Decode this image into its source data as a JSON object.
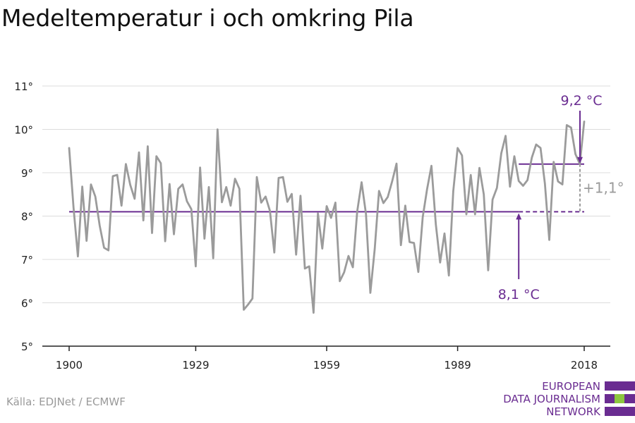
{
  "title": "Medeltemperatur i och omkring Pila",
  "source": "Källa: EDJNet / ECMWF",
  "logo": {
    "line1": "EUROPEAN",
    "line2": "DATA JOURNALISM",
    "line3": "NETWORK",
    "colors": {
      "purple": "#6a2c91",
      "green": "#8dc63f"
    }
  },
  "colors": {
    "series": "#9b9b9b",
    "baseline": "#6a2c91",
    "difference": "#9b9b9b",
    "grid": "#dcdcdc",
    "axis": "#222222"
  },
  "chart_data": {
    "type": "line",
    "title": "Medeltemperatur i och omkring Pila",
    "xlabel": "",
    "ylabel": "",
    "xlim": [
      1900,
      2018
    ],
    "ylim": [
      5,
      11
    ],
    "grid": true,
    "x_ticks": [
      1900,
      1929,
      1959,
      1989,
      2018
    ],
    "x_tick_labels": [
      "1900",
      "1929",
      "1959",
      "1989",
      "2018"
    ],
    "y_ticks": [
      5,
      6,
      7,
      8,
      9,
      10,
      11
    ],
    "y_tick_labels": [
      "5°",
      "6°",
      "7°",
      "8°",
      "9°",
      "10°",
      "11°"
    ],
    "series": [
      {
        "x": [
          1900,
          1901,
          1902,
          1903,
          1904,
          1905,
          1906,
          1907,
          1908,
          1909,
          1910,
          1911,
          1912,
          1913,
          1914,
          1915,
          1916,
          1917,
          1918,
          1919,
          1920,
          1921,
          1922,
          1923,
          1924,
          1925,
          1926,
          1927,
          1928,
          1929,
          1930,
          1931,
          1932,
          1933,
          1934,
          1935,
          1936,
          1937,
          1938,
          1939,
          1940,
          1941,
          1942,
          1943,
          1944,
          1945,
          1946,
          1947,
          1948,
          1949,
          1950,
          1951,
          1952,
          1953,
          1954,
          1955,
          1956,
          1957,
          1958,
          1959,
          1960,
          1961,
          1962,
          1963,
          1964,
          1965,
          1966,
          1967,
          1968,
          1969,
          1970,
          1971,
          1972,
          1973,
          1974,
          1975,
          1976,
          1977,
          1978,
          1979,
          1980,
          1981,
          1982,
          1983,
          1984,
          1985,
          1986,
          1987,
          1988,
          1989,
          1990,
          1991,
          1992,
          1993,
          1994,
          1995,
          1996,
          1997,
          1998,
          1999,
          2000,
          2001,
          2002,
          2003,
          2004,
          2005,
          2006,
          2007,
          2008,
          2009,
          2010,
          2011,
          2012,
          2013,
          2014,
          2015,
          2016,
          2017,
          2018
        ],
        "values": [
          9.57,
          8.2,
          7.07,
          8.68,
          7.43,
          8.73,
          8.45,
          7.78,
          7.27,
          7.21,
          8.92,
          8.95,
          8.24,
          9.2,
          8.72,
          8.4,
          9.47,
          7.9,
          9.61,
          7.61,
          9.38,
          9.22,
          7.42,
          8.74,
          7.58,
          8.63,
          8.73,
          8.34,
          8.16,
          6.84,
          9.12,
          7.48,
          8.67,
          7.03,
          10.0,
          8.32,
          8.67,
          8.24,
          8.86,
          8.63,
          5.84,
          5.96,
          6.1,
          8.9,
          8.31,
          8.45,
          8.12,
          7.16,
          8.88,
          8.9,
          8.33,
          8.51,
          7.11,
          8.47,
          6.79,
          6.84,
          5.77,
          8.06,
          7.25,
          8.23,
          7.96,
          8.31,
          6.5,
          6.7,
          7.08,
          6.82,
          8.11,
          8.78,
          8.05,
          6.23,
          7.24,
          8.58,
          8.3,
          8.44,
          8.8,
          9.21,
          7.33,
          8.24,
          7.4,
          7.38,
          6.71,
          7.97,
          8.62,
          9.16,
          7.81,
          6.93,
          7.6,
          6.63,
          8.57,
          9.57,
          9.4,
          8.04,
          8.95,
          8.04,
          9.11,
          8.5,
          6.75,
          8.38,
          8.65,
          9.45,
          9.85,
          8.68,
          9.38,
          8.81,
          8.7,
          8.83,
          9.35,
          9.65,
          9.57,
          8.75,
          7.45,
          9.25,
          8.8,
          8.73,
          10.1,
          10.04,
          9.43,
          9.2,
          10.18
        ]
      }
    ],
    "baseline": {
      "value": 8.1,
      "from": 1900,
      "to": 2018,
      "solid_to": 2003,
      "label": "8,1 °C"
    },
    "recent": {
      "value": 9.2,
      "from": 2003,
      "to": 2018,
      "label": "9,2 °C"
    },
    "difference_label": "+1,1°"
  }
}
